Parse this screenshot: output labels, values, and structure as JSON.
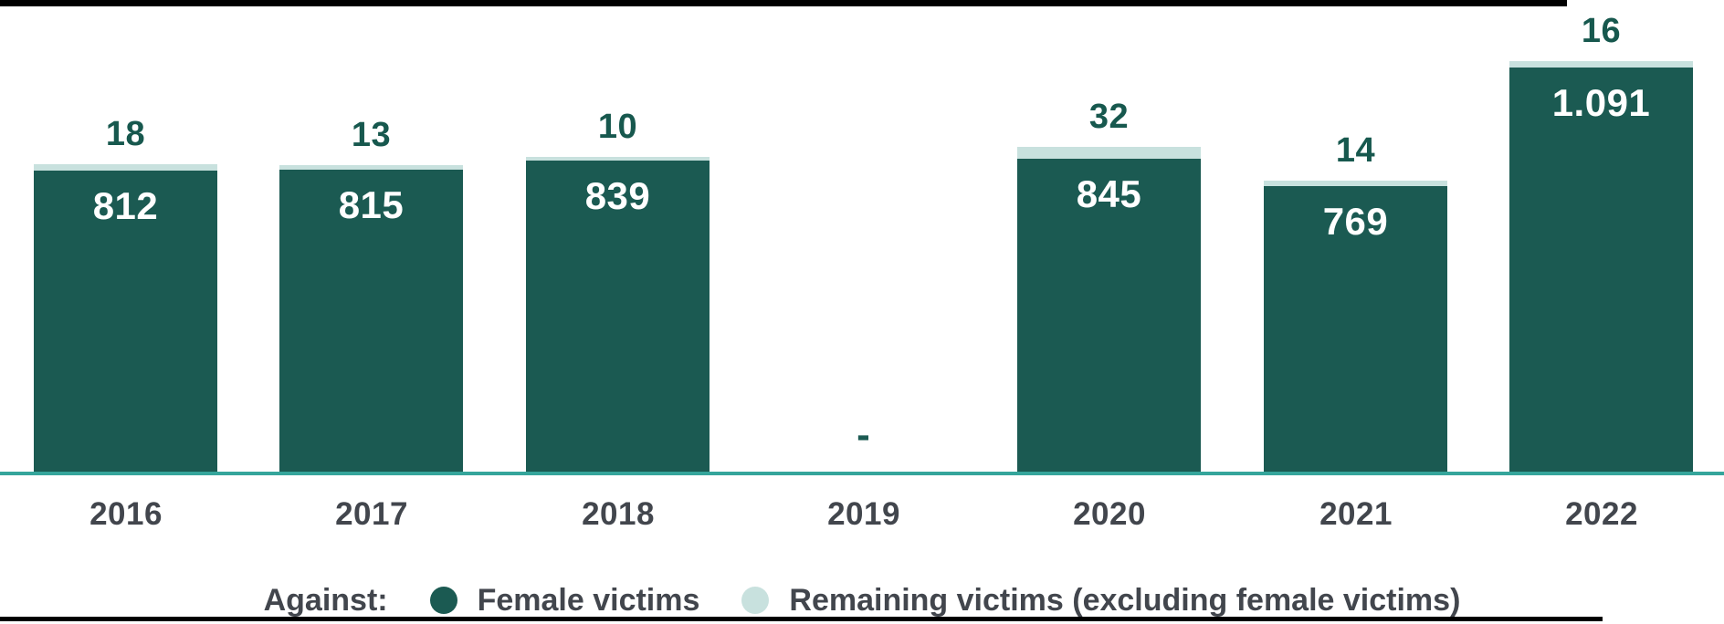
{
  "chart_data": {
    "type": "bar",
    "stacked": true,
    "title": "",
    "xlabel": "",
    "ylabel": "",
    "categories": [
      "2016",
      "2017",
      "2018",
      "2019",
      "2020",
      "2021",
      "2022"
    ],
    "series": [
      {
        "name": "Female victims",
        "color": "#1b5a52",
        "values": [
          812,
          815,
          839,
          null,
          845,
          769,
          1091
        ],
        "display": [
          "812",
          "815",
          "839",
          "",
          "845",
          "769",
          "1.091"
        ]
      },
      {
        "name": "Remaining victims (excluding female victims)",
        "color": "#c8e1de",
        "values": [
          18,
          13,
          10,
          null,
          32,
          14,
          16
        ],
        "display": [
          "18",
          "13",
          "10",
          "",
          "32",
          "14",
          "16"
        ]
      }
    ],
    "no_data_marker": "-",
    "ylim": [
      0,
      1280
    ],
    "grid": false,
    "legend_position": "bottom"
  },
  "legend": {
    "prefix": "Against:",
    "items": [
      {
        "label": "Female victims",
        "color": "#1b5a52"
      },
      {
        "label": "Remaining victims (excluding female victims)",
        "color": "#c8e1de"
      }
    ]
  },
  "colors": {
    "bar_female": "#1b5a52",
    "bar_remaining": "#c8e1de",
    "value_label_inside": "#ffffff",
    "value_label_top": "#17584e",
    "no_data_marker": "#1b5a52",
    "axis_line": "#35a59b",
    "axis_text": "#42464d",
    "legend_text": "#42464d",
    "border": "#000000"
  }
}
